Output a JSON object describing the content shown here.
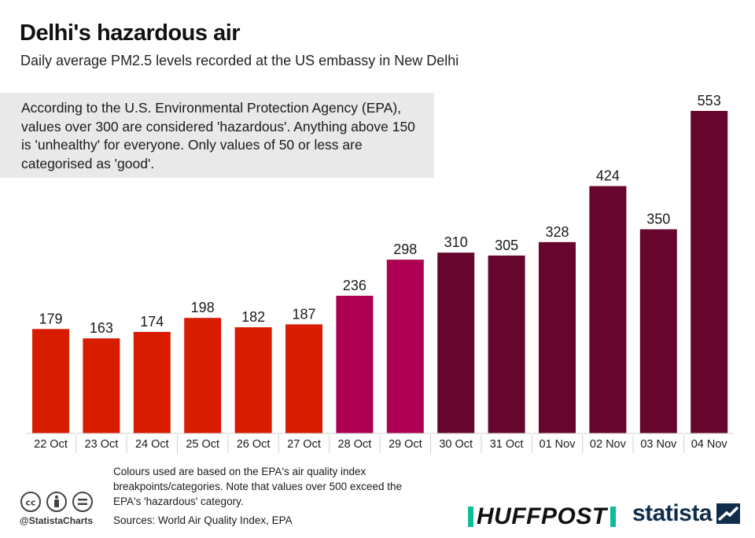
{
  "header": {
    "title": "Delhi's hazardous air",
    "subtitle": "Daily average PM2.5 levels recorded at the US embassy in New Delhi"
  },
  "note": {
    "text": "According to the U.S. Environmental Protection Agency (EPA), values over 300 are considered 'hazardous'. Anything above 150 is 'unhealthy' for everyone. Only values of 50 or less are categorised as 'good'."
  },
  "chart_data": {
    "type": "bar",
    "title": "Delhi's hazardous air",
    "subtitle": "Daily average PM2.5 levels recorded at the US embassy in New Delhi",
    "xlabel": "",
    "ylabel": "",
    "categories": [
      "22 Oct",
      "23 Oct",
      "24 Oct",
      "25 Oct",
      "26 Oct",
      "27 Oct",
      "28 Oct",
      "29 Oct",
      "30 Oct",
      "31 Oct",
      "01 Nov",
      "02 Nov",
      "03 Nov",
      "04 Nov"
    ],
    "values": [
      179,
      163,
      174,
      198,
      182,
      187,
      236,
      298,
      310,
      305,
      328,
      424,
      350,
      553
    ],
    "ylim": [
      0,
      553
    ],
    "grid": false,
    "legend": "none",
    "colors": {
      "unhealthy": "#d71c00",
      "very_unhealthy": "#ad0052",
      "hazardous": "#66062c"
    },
    "bar_category": [
      "unhealthy",
      "unhealthy",
      "unhealthy",
      "unhealthy",
      "unhealthy",
      "unhealthy",
      "very_unhealthy",
      "very_unhealthy",
      "hazardous",
      "hazardous",
      "hazardous",
      "hazardous",
      "hazardous",
      "hazardous"
    ]
  },
  "footer": {
    "footnote": "Colours used are based on the EPA's air quality index breakpoints/categories. Note that values over 500 exceed the EPA's 'hazardous' category.",
    "sources": "Sources: World Air Quality Index, EPA",
    "handle": "@StatistaCharts",
    "huffpost_logo_text": "HUFFPOST",
    "statista_logo_text": "statista"
  }
}
